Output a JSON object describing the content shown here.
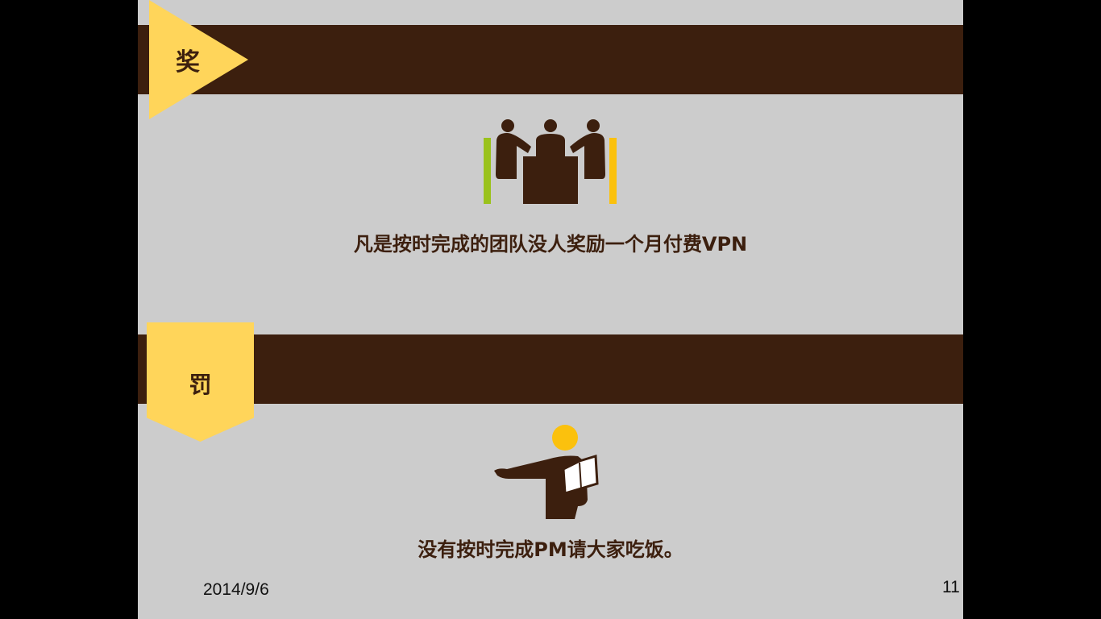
{
  "slide": {
    "reward": {
      "tag": "奖",
      "text": "凡是按时完成的团队没人奖励一个月付费VPN",
      "icon": "team-meeting-icon"
    },
    "punishment": {
      "tag": "罚",
      "text": "没有按时完成PM请大家吃饭。",
      "icon": "presenter-icon"
    },
    "footer": {
      "date": "2014/9/6",
      "page_number": "11"
    }
  },
  "colors": {
    "background": "#cccccc",
    "band": "#3c1f0e",
    "tag": "#ffd55a",
    "accent_green": "#9ac21c",
    "accent_yellow": "#fbc10d",
    "outside": "#000000"
  }
}
